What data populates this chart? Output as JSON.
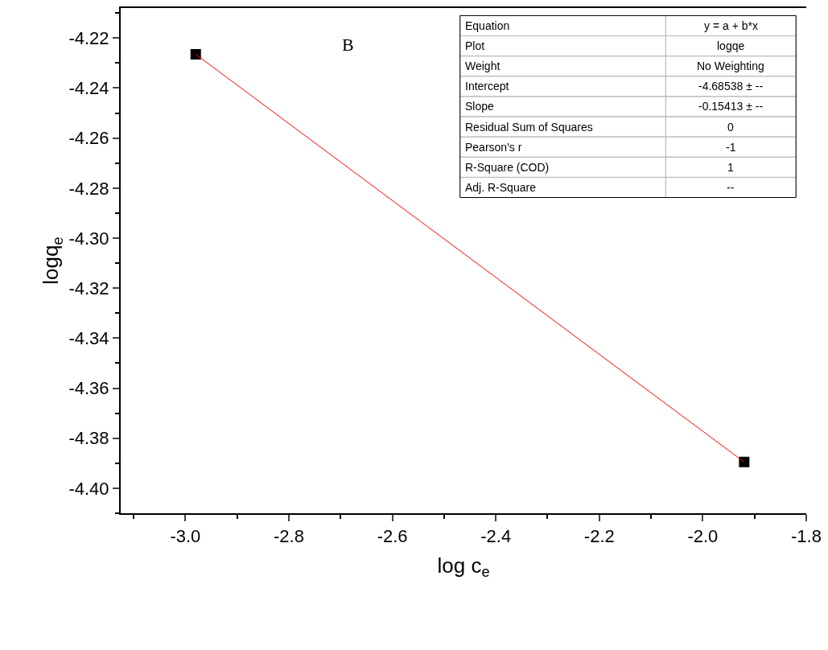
{
  "chart_data": {
    "type": "scatter",
    "xlabel": "log c$_{e}$",
    "ylabel": "logq$_{e}$",
    "series": [
      {
        "color": "#000000",
        "values": [
          -4.2265,
          -4.3895
        ],
        "marker": "square"
      },
      {
        "type": "line",
        "color": "#ff0000",
        "values": [
          -4.2265,
          -4.3895
        ],
        "marker": "none"
      }
    ],
    "x": [
      -2.98,
      -1.92
    ],
    "xlim": [
      -3.125,
      -1.8
    ],
    "xticks": [
      {
        "value": -3.0,
        "label": "-3.0"
      },
      -2.8,
      -2.6,
      -2.4,
      -2.2,
      {
        "value": -2.0,
        "label": "-2.0"
      },
      -1.8
    ],
    "ylim": [
      -4.41,
      -4.208
    ],
    "yticks": [
      -4.22,
      -4.24,
      -4.26,
      -4.28,
      {
        "value": -4.3,
        "label": "-4.30"
      },
      -4.32,
      -4.34,
      -4.36,
      -4.38,
      {
        "value": -4.4,
        "label": "-4.40"
      }
    ],
    "legend": false,
    "annotations": [
      "B",
      "Equation",
      "y = a + b*x",
      "Plot",
      "logqe",
      "Weight",
      "No Weighting",
      "Intercept",
      "-4.68538 ± --",
      "Slope",
      "-0.15413 ± --",
      "Residual Sum of Squares",
      "0",
      "Pearson's r",
      "-1",
      "R-Square (COD)",
      "1",
      "Adj. R-Square",
      "--"
    ]
  }
}
